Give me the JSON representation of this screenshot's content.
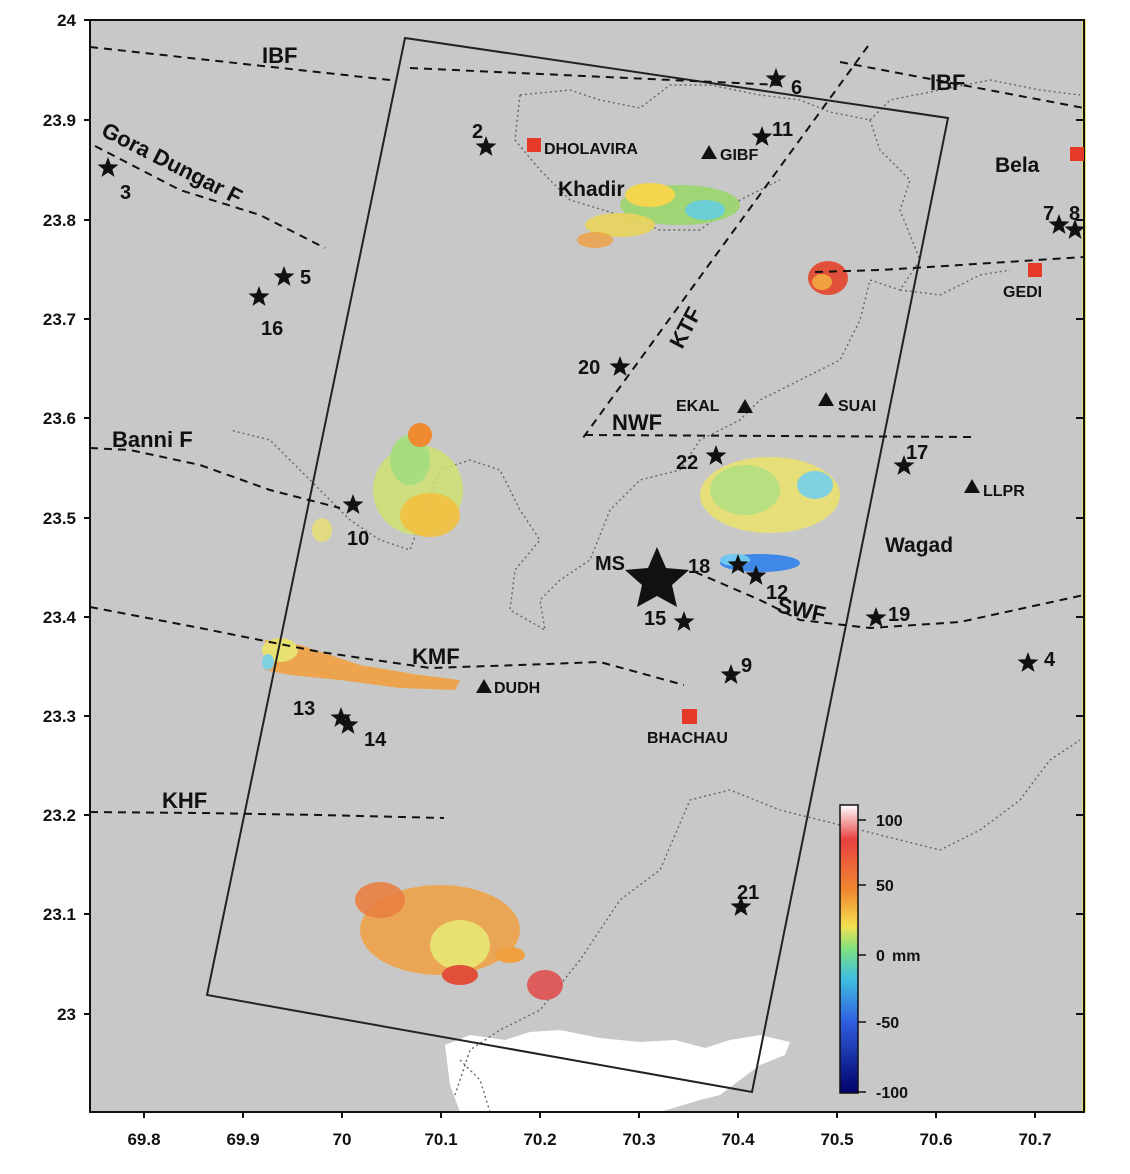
{
  "map": {
    "x_ticks": [
      "69.8",
      "69.9",
      "70",
      "70.1",
      "70.2",
      "70.3",
      "70.4",
      "70.5",
      "70.6",
      "70.7"
    ],
    "y_ticks": [
      "24",
      "23.9",
      "23.8",
      "23.7",
      "23.6",
      "23.5",
      "23.4",
      "23.3",
      "23.2",
      "23.1",
      "23"
    ],
    "background_color": "#c8c8c8",
    "sea_color": "#ffffff",
    "faults": {
      "ibf_west": "IBF",
      "ibf_east": "IBF",
      "gora_dungar": "Gora Dungar F",
      "ktf": "KTF",
      "nwf": "NWF",
      "banni": "Banni F",
      "swf": "SWF",
      "kmf": "KMF",
      "khf": "KHF"
    },
    "regions": {
      "khadir": "Khadir",
      "bela": "Bela",
      "wagad": "Wagad"
    },
    "towns": {
      "dholavira": "DHOLAVIRA",
      "gedi": "GEDI",
      "bhachau": "BHACHAU"
    },
    "stations": {
      "gibf": "GIBF",
      "ekal": "EKAL",
      "suai": "SUAI",
      "llpr": "LLPR",
      "dudh": "DUDH"
    },
    "main_shock": "MS",
    "earthquakes": [
      "2",
      "3",
      "4",
      "5",
      "6",
      "7",
      "8",
      "9",
      "10",
      "11",
      "12",
      "13",
      "14",
      "15",
      "16",
      "17",
      "18",
      "19",
      "20",
      "21",
      "22"
    ],
    "colorbar": {
      "ticks": [
        "100",
        "50",
        "0",
        "-50",
        "-100"
      ],
      "unit": "mm"
    }
  }
}
